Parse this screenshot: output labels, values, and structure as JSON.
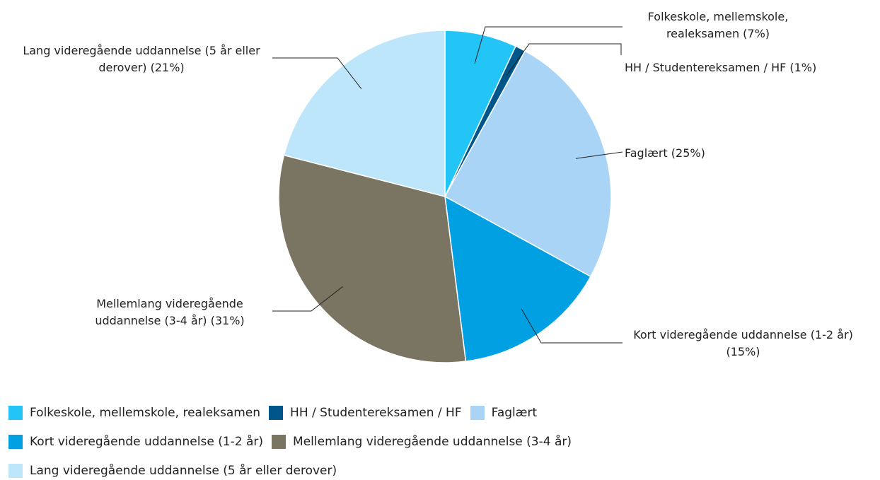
{
  "chart_data": {
    "type": "pie",
    "categories": [
      "Folkeskole, mellemskole, realeksamen",
      "HH / Studentereksamen / HF",
      "Faglært",
      "Kort videregående uddannelse (1-2 år)",
      "Mellemlang videregående uddannelse (3-4 år)",
      "Lang videregående uddannelse (5 år eller derover)"
    ],
    "values": [
      7,
      1,
      25,
      15,
      31,
      21
    ],
    "value_labels": [
      "Folkeskole, mellemskole, realeksamen (7%)",
      "HH / Studentereksamen / HF (1%)",
      "Faglært (25%)",
      "Kort videregående uddannelse (1-2 år) (15%)",
      "Mellemlang videregående uddannelse (3-4 år) (31%)",
      "Lang videregående uddannelse (5 år eller derover) (21%)"
    ],
    "colors": [
      "#22c5f5",
      "#00568b",
      "#aad4f6",
      "#00a0e3",
      "#797562",
      "#bee6fb"
    ],
    "legend": "bottom"
  }
}
